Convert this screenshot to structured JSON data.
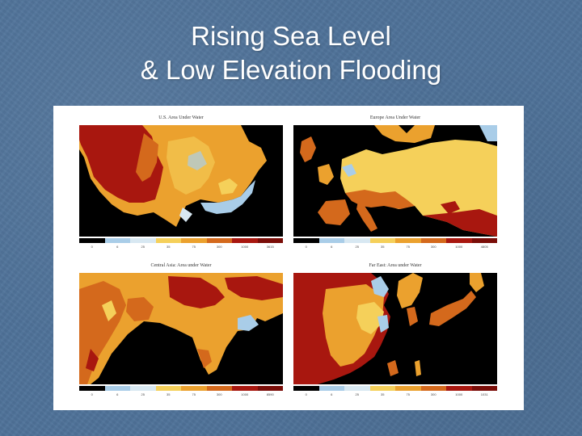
{
  "slide": {
    "title_line1": "Rising Sea Level",
    "title_line2": "& Low Elevation Flooding"
  },
  "colors": {
    "background": "#4f7299",
    "water": "#000000",
    "flooded_low": "#a9cde8",
    "flooded_mid": "#d8e8f2",
    "land_low": "#f5d05a",
    "land_mid": "#eba12e",
    "land_high": "#d4691c",
    "land_highest": "#a8170f"
  },
  "panels": [
    {
      "title": "U.S. Area Under Water",
      "ticks": [
        "0",
        "6",
        "25",
        "35",
        "75",
        "300",
        "1000",
        "3615"
      ]
    },
    {
      "title": "Europe Area Under Water",
      "ticks": [
        "0",
        "6",
        "25",
        "35",
        "75",
        "300",
        "1000",
        "4805"
      ]
    },
    {
      "title": "Central Asia: Area under Water",
      "ticks": [
        "0",
        "6",
        "25",
        "35",
        "75",
        "300",
        "1000",
        "8590"
      ]
    },
    {
      "title": "Far East: Area under Water",
      "ticks": [
        "0",
        "6",
        "25",
        "35",
        "75",
        "300",
        "1000",
        "1031"
      ]
    }
  ]
}
